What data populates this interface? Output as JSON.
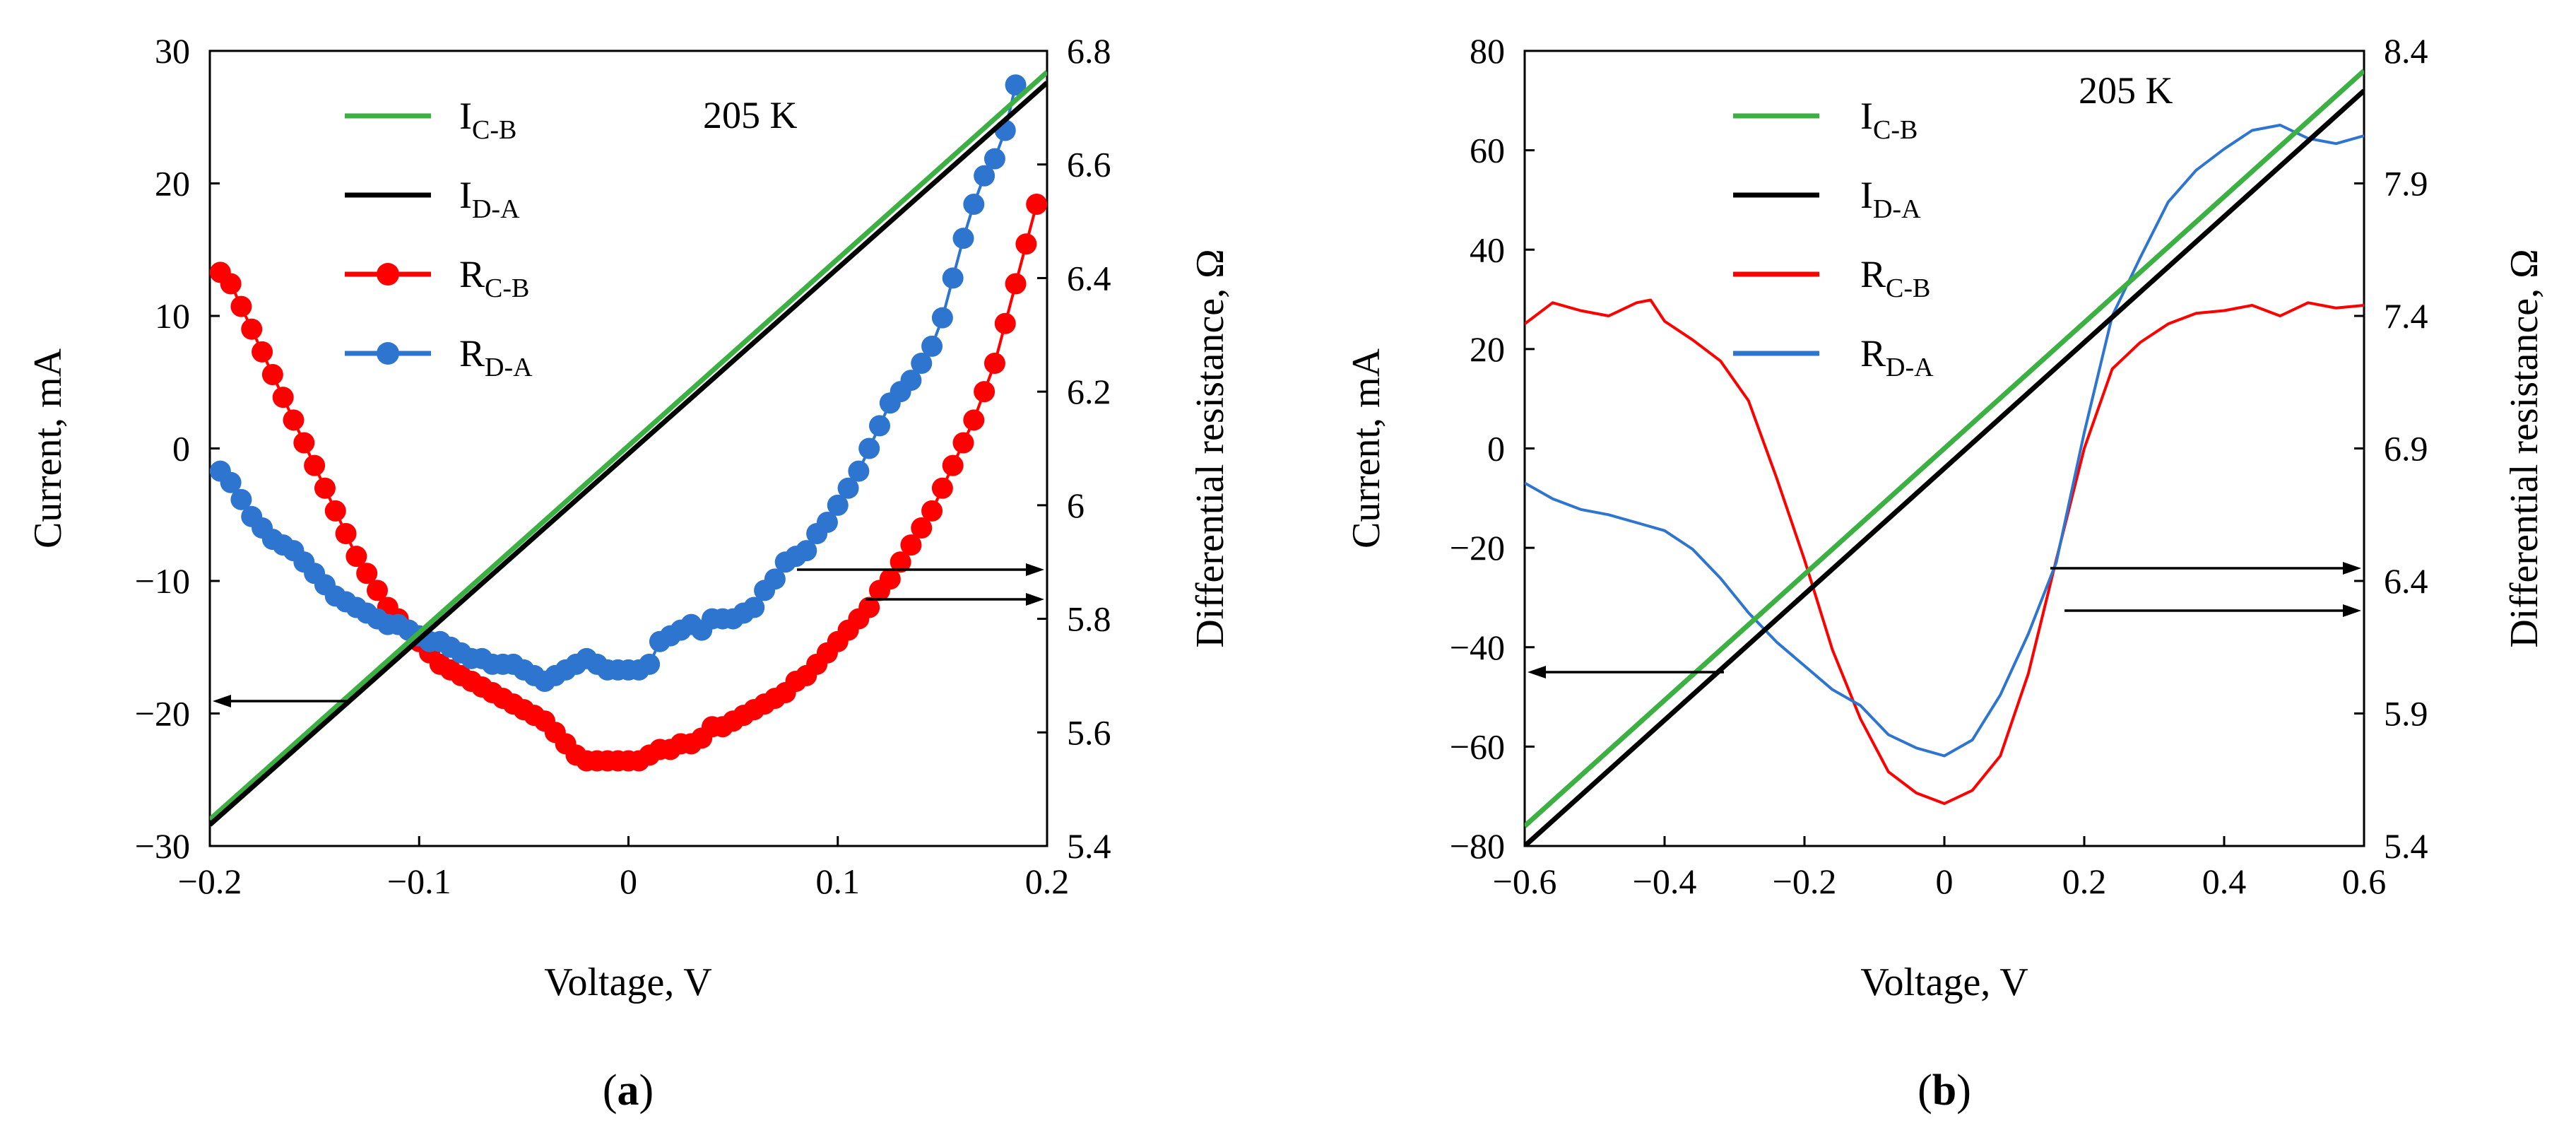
{
  "chart_data": [
    {
      "panel_label": "a",
      "type": "line",
      "xlabel": "Voltage, V",
      "ylabel": "Current, mA",
      "y2label": "Differential  resistance, Ω",
      "annotation": "205 K",
      "xlim": [
        -0.2,
        0.2
      ],
      "ylim": [
        -30,
        30
      ],
      "y2lim": [
        5.4,
        6.8
      ],
      "x_ticks": [
        "−0.2",
        "−0.1",
        "0",
        "0.1",
        "0.2"
      ],
      "y_ticks": [
        "30",
        "20",
        "10",
        "0",
        "−10",
        "−20",
        "−30"
      ],
      "y2_ticks": [
        "6.8",
        "6.6",
        "6.4",
        "6.2",
        "6",
        "5.8",
        "5.6",
        "5.4"
      ],
      "legend": [
        {
          "main": "I",
          "sub": "C-B",
          "color": "#3cb043",
          "marker": false
        },
        {
          "main": "I",
          "sub": "D-A",
          "color": "#000000",
          "marker": false
        },
        {
          "main": "R",
          "sub": "C-B",
          "color": "#ff0000",
          "marker": true
        },
        {
          "main": "R",
          "sub": "D-A",
          "color": "#2e75d0",
          "marker": true
        }
      ],
      "series": [
        {
          "name": "I_C-B",
          "axis": "left",
          "color": "#3cb043",
          "x": [
            -0.2,
            0.2
          ],
          "y": [
            -28.0,
            28.4
          ]
        },
        {
          "name": "I_D-A",
          "axis": "left",
          "color": "#000000",
          "x": [
            -0.2,
            0.2
          ],
          "y": [
            -28.4,
            27.6
          ]
        },
        {
          "name": "R_C-B",
          "axis": "right",
          "color": "#ff0000",
          "markers": true,
          "x": [
            -0.195,
            -0.19,
            -0.185,
            -0.18,
            -0.175,
            -0.17,
            -0.165,
            -0.16,
            -0.155,
            -0.15,
            -0.145,
            -0.14,
            -0.135,
            -0.13,
            -0.125,
            -0.12,
            -0.115,
            -0.11,
            -0.105,
            -0.1,
            -0.095,
            -0.09,
            -0.085,
            -0.08,
            -0.075,
            -0.07,
            -0.065,
            -0.06,
            -0.055,
            -0.05,
            -0.045,
            -0.04,
            -0.035,
            -0.03,
            -0.025,
            -0.02,
            -0.015,
            -0.01,
            -0.005,
            0,
            0.005,
            0.01,
            0.015,
            0.02,
            0.025,
            0.03,
            0.035,
            0.04,
            0.045,
            0.05,
            0.055,
            0.06,
            0.065,
            0.07,
            0.075,
            0.08,
            0.085,
            0.09,
            0.095,
            0.1,
            0.105,
            0.11,
            0.115,
            0.12,
            0.125,
            0.13,
            0.135,
            0.14,
            0.145,
            0.15,
            0.155,
            0.16,
            0.165,
            0.17,
            0.175,
            0.18,
            0.185,
            0.19,
            0.195
          ],
          "y": [
            6.41,
            6.39,
            6.35,
            6.31,
            6.27,
            6.23,
            6.19,
            6.15,
            6.11,
            6.07,
            6.03,
            5.99,
            5.95,
            5.91,
            5.88,
            5.85,
            5.82,
            5.8,
            5.78,
            5.76,
            5.74,
            5.72,
            5.71,
            5.7,
            5.69,
            5.68,
            5.67,
            5.66,
            5.65,
            5.64,
            5.63,
            5.62,
            5.6,
            5.58,
            5.56,
            5.55,
            5.55,
            5.55,
            5.55,
            5.55,
            5.55,
            5.56,
            5.57,
            5.57,
            5.58,
            5.58,
            5.59,
            5.61,
            5.61,
            5.62,
            5.63,
            5.64,
            5.65,
            5.66,
            5.67,
            5.69,
            5.7,
            5.72,
            5.74,
            5.76,
            5.78,
            5.8,
            5.82,
            5.85,
            5.87,
            5.9,
            5.93,
            5.96,
            5.99,
            6.03,
            6.07,
            6.11,
            6.15,
            6.2,
            6.25,
            6.32,
            6.39,
            6.46,
            6.53
          ]
        },
        {
          "name": "R_D-A",
          "axis": "right",
          "color": "#2e75d0",
          "markers": true,
          "x": [
            -0.195,
            -0.19,
            -0.185,
            -0.18,
            -0.175,
            -0.17,
            -0.165,
            -0.16,
            -0.155,
            -0.15,
            -0.145,
            -0.14,
            -0.135,
            -0.13,
            -0.125,
            -0.12,
            -0.115,
            -0.11,
            -0.105,
            -0.1,
            -0.095,
            -0.09,
            -0.085,
            -0.08,
            -0.075,
            -0.07,
            -0.065,
            -0.06,
            -0.055,
            -0.05,
            -0.045,
            -0.04,
            -0.035,
            -0.03,
            -0.025,
            -0.02,
            -0.015,
            -0.01,
            -0.005,
            0,
            0.005,
            0.01,
            0.015,
            0.02,
            0.025,
            0.03,
            0.035,
            0.04,
            0.045,
            0.05,
            0.055,
            0.06,
            0.065,
            0.07,
            0.075,
            0.08,
            0.085,
            0.09,
            0.095,
            0.1,
            0.105,
            0.11,
            0.115,
            0.12,
            0.125,
            0.13,
            0.135,
            0.14,
            0.145,
            0.15,
            0.155,
            0.16,
            0.165,
            0.17,
            0.175,
            0.18,
            0.185
          ],
          "y": [
            6.06,
            6.04,
            6.01,
            5.98,
            5.96,
            5.94,
            5.93,
            5.92,
            5.9,
            5.88,
            5.86,
            5.84,
            5.83,
            5.82,
            5.81,
            5.8,
            5.79,
            5.79,
            5.78,
            5.77,
            5.76,
            5.76,
            5.75,
            5.74,
            5.73,
            5.73,
            5.72,
            5.72,
            5.72,
            5.71,
            5.7,
            5.69,
            5.7,
            5.71,
            5.72,
            5.73,
            5.72,
            5.71,
            5.71,
            5.71,
            5.71,
            5.72,
            5.76,
            5.77,
            5.78,
            5.79,
            5.78,
            5.8,
            5.8,
            5.8,
            5.81,
            5.82,
            5.85,
            5.87,
            5.9,
            5.91,
            5.92,
            5.95,
            5.97,
            6.0,
            6.03,
            6.06,
            6.1,
            6.14,
            6.18,
            6.2,
            6.22,
            6.25,
            6.28,
            6.33,
            6.4,
            6.47,
            6.53,
            6.58,
            6.61,
            6.66,
            6.74
          ]
        }
      ]
    },
    {
      "panel_label": "b",
      "type": "line",
      "xlabel": "Voltage, V",
      "ylabel": "Current, mA",
      "y2label": "Differential  resistance, Ω",
      "annotation": "205 K",
      "xlim": [
        -0.6,
        0.6
      ],
      "ylim": [
        -80,
        80
      ],
      "y2lim": [
        5.4,
        8.4
      ],
      "x_ticks": [
        "−0.6",
        "−0.4",
        "−0.2",
        "0",
        "0.2",
        "0.4",
        "0.6"
      ],
      "y_ticks": [
        "80",
        "60",
        "40",
        "20",
        "0",
        "−20",
        "−40",
        "−60",
        "−80"
      ],
      "y2_ticks": [
        "8.4",
        "7.9",
        "7.4",
        "6.9",
        "6.4",
        "5.9",
        "5.4"
      ],
      "legend": [
        {
          "main": "I",
          "sub": "C-B",
          "color": "#3cb043",
          "marker": false
        },
        {
          "main": "I",
          "sub": "D-A",
          "color": "#000000",
          "marker": false
        },
        {
          "main": "R",
          "sub": "C-B",
          "color": "#ff0000",
          "marker": false
        },
        {
          "main": "R",
          "sub": "D-A",
          "color": "#2e75d0",
          "marker": false
        }
      ],
      "series": [
        {
          "name": "I_C-B",
          "axis": "left",
          "color": "#3cb043",
          "x": [
            -0.6,
            0.6
          ],
          "y": [
            -76,
            76
          ]
        },
        {
          "name": "I_D-A",
          "axis": "left",
          "color": "#000000",
          "x": [
            -0.6,
            0.6
          ],
          "y": [
            -80,
            72
          ]
        },
        {
          "name": "R_C-B",
          "axis": "right",
          "color": "#ff0000",
          "markers": false,
          "x": [
            -0.6,
            -0.56,
            -0.52,
            -0.48,
            -0.44,
            -0.42,
            -0.4,
            -0.36,
            -0.32,
            -0.28,
            -0.24,
            -0.2,
            -0.16,
            -0.12,
            -0.08,
            -0.04,
            0,
            0.04,
            0.08,
            0.12,
            0.16,
            0.2,
            0.24,
            0.28,
            0.32,
            0.36,
            0.4,
            0.44,
            0.48,
            0.52,
            0.56,
            0.6
          ],
          "y": [
            7.37,
            7.45,
            7.42,
            7.4,
            7.45,
            7.46,
            7.38,
            7.31,
            7.23,
            7.08,
            6.79,
            6.48,
            6.14,
            5.88,
            5.68,
            5.6,
            5.56,
            5.61,
            5.74,
            6.05,
            6.48,
            6.9,
            7.2,
            7.3,
            7.37,
            7.41,
            7.42,
            7.44,
            7.4,
            7.45,
            7.43,
            7.44
          ]
        },
        {
          "name": "R_D-A",
          "axis": "right",
          "color": "#2e75d0",
          "markers": false,
          "x": [
            -0.6,
            -0.56,
            -0.52,
            -0.48,
            -0.44,
            -0.4,
            -0.36,
            -0.32,
            -0.28,
            -0.24,
            -0.2,
            -0.16,
            -0.12,
            -0.08,
            -0.04,
            0,
            0.04,
            0.08,
            0.12,
            0.16,
            0.2,
            0.24,
            0.28,
            0.32,
            0.36,
            0.4,
            0.44,
            0.48,
            0.52,
            0.56,
            0.6
          ],
          "y": [
            6.77,
            6.71,
            6.67,
            6.65,
            6.62,
            6.59,
            6.52,
            6.41,
            6.28,
            6.17,
            6.08,
            5.99,
            5.93,
            5.82,
            5.77,
            5.74,
            5.8,
            5.97,
            6.2,
            6.47,
            6.96,
            7.4,
            7.62,
            7.83,
            7.95,
            8.03,
            8.1,
            8.12,
            8.07,
            8.05,
            8.08
          ]
        }
      ]
    }
  ]
}
